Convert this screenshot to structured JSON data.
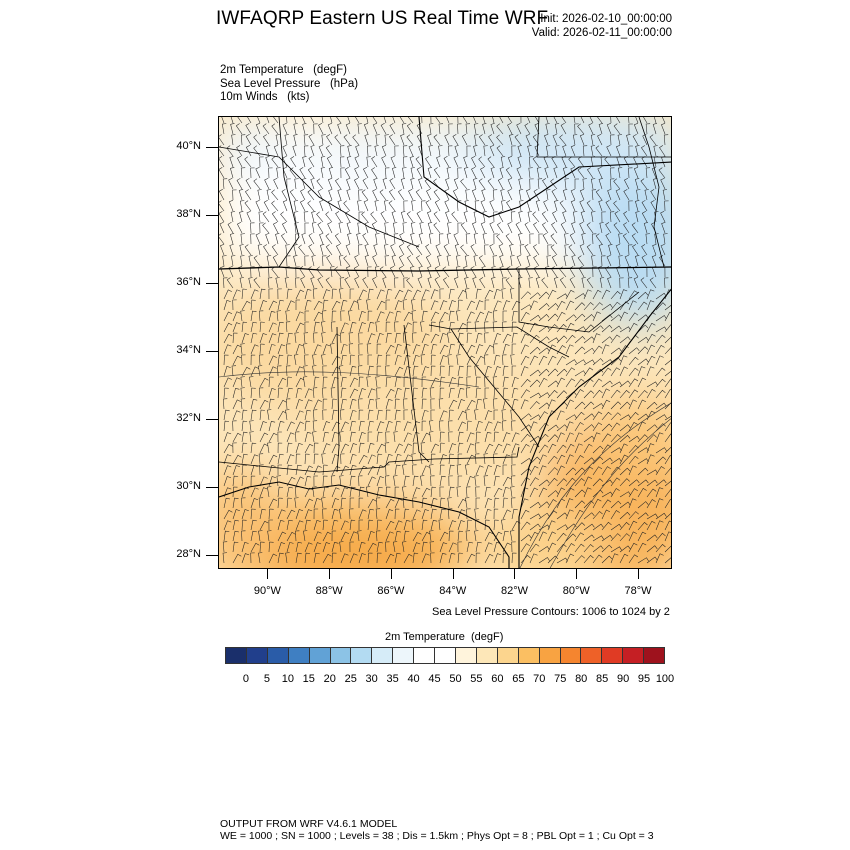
{
  "header": {
    "title": "IWFAQRP Eastern US Real Time WRF",
    "init": "Init: 2026-02-10_00:00:00",
    "valid": "Valid: 2026-02-11_00:00:00"
  },
  "fields": {
    "line1": "2m Temperature   (degF)",
    "line2": "Sea Level Pressure   (hPa)",
    "line3": "10m Winds   (kts)"
  },
  "map": {
    "lat_labels": [
      "40°N",
      "38°N",
      "36°N",
      "34°N",
      "32°N",
      "30°N",
      "28°N"
    ],
    "lon_labels": [
      "90°W",
      "88°W",
      "86°W",
      "84°W",
      "82°W",
      "80°W",
      "78°W"
    ],
    "lon_range": [
      -91.6,
      -76.9
    ],
    "lat_range": [
      27.6,
      40.9
    ]
  },
  "slp_note": "Sea Level Pressure Contours: 1006 to 1024 by 2",
  "colorbar": {
    "title": "2m Temperature  (degF)",
    "labels": [
      "0",
      "5",
      "10",
      "15",
      "20",
      "25",
      "30",
      "35",
      "40",
      "45",
      "50",
      "55",
      "60",
      "65",
      "70",
      "75",
      "80",
      "85",
      "90",
      "95",
      "100"
    ],
    "colors": [
      "#1a2f6b",
      "#213f8c",
      "#2a5ca8",
      "#3f7fc2",
      "#61a2d6",
      "#8cc3e6",
      "#b3dbf2",
      "#d6ecf8",
      "#edf6fb",
      "#ffffff",
      "#ffffff",
      "#fff4dc",
      "#fde7b8",
      "#fcd58e",
      "#fbbf62",
      "#f8a342",
      "#f5852f",
      "#ee6128",
      "#e03b24",
      "#c51f24",
      "#9e121d"
    ]
  },
  "footer": {
    "line1": "OUTPUT FROM WRF V4.6.1 MODEL",
    "line2": "WE = 1000 ; SN = 1000 ; Levels = 38 ; Dis = 1.5km ; Phys Opt = 8 ; PBL Opt = 1 ; Cu Opt = 3"
  }
}
